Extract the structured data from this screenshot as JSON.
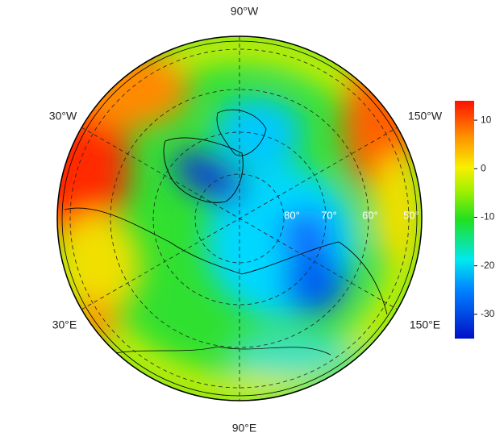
{
  "map": {
    "meridian_labels": [
      "90°W",
      "30°W",
      "150°W",
      "30°E",
      "150°E",
      "90°E"
    ],
    "parallel_labels": [
      "80°",
      "70°",
      "60°",
      "50°"
    ],
    "colorbar": {
      "lim": [
        -35,
        14
      ],
      "ticks": [
        10,
        0,
        -10,
        -20,
        -30
      ]
    }
  }
}
